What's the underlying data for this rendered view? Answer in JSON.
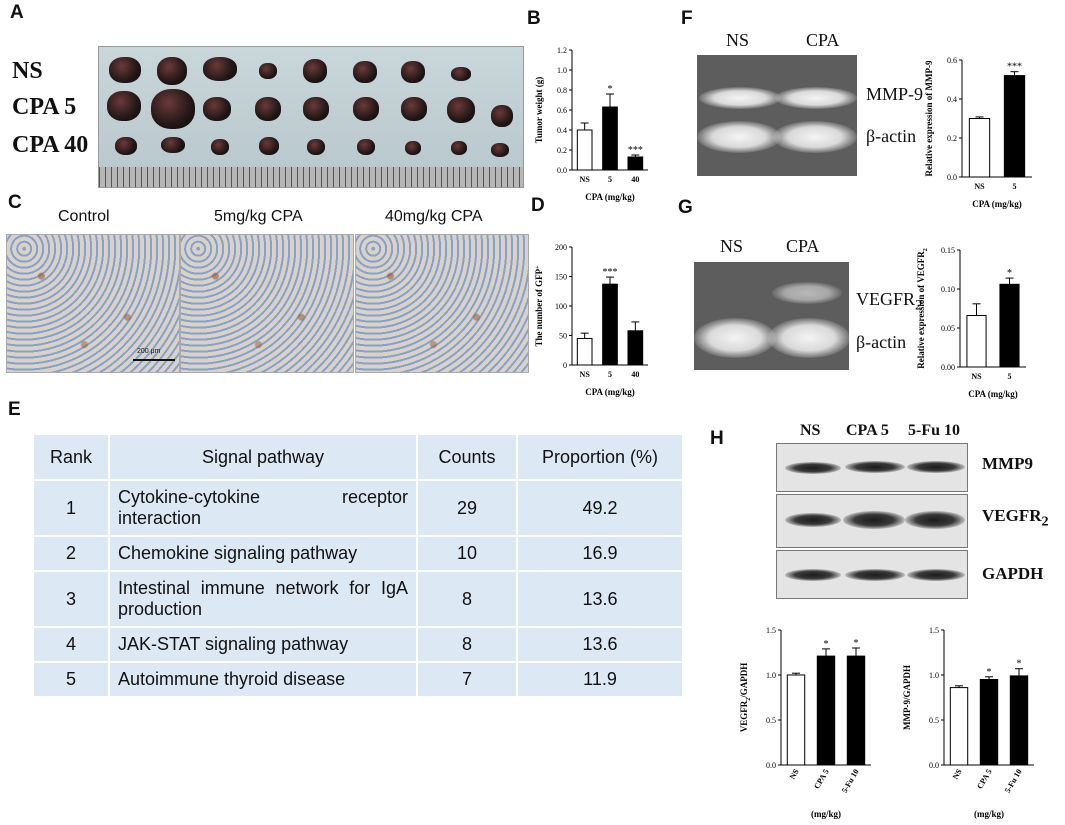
{
  "panel_labels": {
    "A": "A",
    "B": "B",
    "C": "C",
    "D": "D",
    "E": "E",
    "F": "F",
    "G": "G",
    "H": "H"
  },
  "panelA": {
    "rows": [
      "NS",
      "CPA 5",
      "CPA 40"
    ]
  },
  "panelC": {
    "titles": [
      "Control",
      "5mg/kg CPA",
      "40mg/kg CPA"
    ],
    "scale_text": "200 μm"
  },
  "panelF": {
    "lanes": [
      "NS",
      "CPA"
    ],
    "bands": [
      "MMP-9",
      "β-actin"
    ]
  },
  "panelG": {
    "lanes": [
      "NS",
      "CPA"
    ],
    "band_top": "VEGFR",
    "band_top_sub": "2",
    "band_bottom": "β-actin"
  },
  "panelH": {
    "lanes": [
      "NS",
      "CPA 5",
      "5-Fu 10"
    ],
    "blots": [
      "MMP9",
      "VEGFR",
      "GAPDH"
    ],
    "blot_sub": "2"
  },
  "table": {
    "headers": [
      "Rank",
      "Signal pathway",
      "Counts",
      "Proportion (%)"
    ],
    "rows": [
      {
        "rank": "1",
        "pathway": "Cytokine-cytokine receptor interaction",
        "counts": "29",
        "proportion": "49.2"
      },
      {
        "rank": "2",
        "pathway": "Chemokine signaling pathway",
        "counts": "10",
        "proportion": "16.9"
      },
      {
        "rank": "3",
        "pathway": "Intestinal immune network for IgA production",
        "counts": "8",
        "proportion": "13.6"
      },
      {
        "rank": "4",
        "pathway": "JAK-STAT signaling pathway",
        "counts": "8",
        "proportion": "13.6"
      },
      {
        "rank": "5",
        "pathway": "Autoimmune thyroid disease",
        "counts": "7",
        "proportion": "11.9"
      }
    ]
  },
  "chart_data": [
    {
      "id": "B",
      "type": "bar",
      "categories": [
        "NS",
        "5",
        "40"
      ],
      "values": [
        0.4,
        0.63,
        0.13
      ],
      "errors": [
        0.07,
        0.13,
        0.02
      ],
      "sig": [
        "",
        "*",
        "***"
      ],
      "fills": [
        "#ffffff",
        "#000000",
        "#000000"
      ],
      "ylabel": "Tumor weight (g)",
      "xlabel": "CPA (mg/kg)",
      "ylim": [
        0,
        1.2
      ],
      "yticks": [
        "0.0",
        "0.2",
        "0.4",
        "0.6",
        "0.8",
        "1.0",
        "1.2"
      ]
    },
    {
      "id": "D",
      "type": "bar",
      "categories": [
        "NS",
        "5",
        "40"
      ],
      "values": [
        45,
        137,
        58
      ],
      "errors": [
        9,
        12,
        15
      ],
      "sig": [
        "",
        "***",
        ""
      ],
      "fills": [
        "#ffffff",
        "#000000",
        "#000000"
      ],
      "ylabel": "The number of GFP",
      "ylabel_sup": "+",
      "xlabel": "CPA (mg/kg)",
      "ylim": [
        0,
        200
      ],
      "yticks": [
        "0",
        "50",
        "100",
        "150",
        "200"
      ]
    },
    {
      "id": "F",
      "type": "bar",
      "categories": [
        "NS",
        "5"
      ],
      "values": [
        0.3,
        0.52
      ],
      "errors": [
        0.008,
        0.02
      ],
      "sig": [
        "",
        "***"
      ],
      "fills": [
        "#ffffff",
        "#000000"
      ],
      "ylabel": "Relative expression of MMP-9",
      "xlabel": "CPA (mg/kg)",
      "ylim": [
        0,
        0.6
      ],
      "yticks": [
        "0.0",
        "0.2",
        "0.4",
        "0.6"
      ]
    },
    {
      "id": "G",
      "type": "bar",
      "categories": [
        "NS",
        "5"
      ],
      "values": [
        0.066,
        0.106
      ],
      "errors": [
        0.015,
        0.008
      ],
      "sig": [
        "",
        "*"
      ],
      "fills": [
        "#ffffff",
        "#000000"
      ],
      "ylabel": "Relative expression of VEGFR",
      "ylabel_sub": "2",
      "xlabel": "CPA (mg/kg)",
      "ylim": [
        0,
        0.15
      ],
      "yticks": [
        "0.00",
        "0.05",
        "0.10",
        "0.15"
      ]
    },
    {
      "id": "H1",
      "type": "bar",
      "categories": [
        "NS",
        "CPA 5",
        "5-Fu 10"
      ],
      "values": [
        1.0,
        1.21,
        1.21
      ],
      "errors": [
        0.02,
        0.08,
        0.09
      ],
      "sig": [
        "",
        "*",
        "*"
      ],
      "fills": [
        "#ffffff",
        "#000000",
        "#000000"
      ],
      "ylabel": "VEGFR",
      "ylabel_sub": "2",
      "ylabel_tail": "/GAPDH",
      "xlabel": "(mg/kg)",
      "ylim": [
        0,
        1.5
      ],
      "yticks": [
        "0.0",
        "0.5",
        "1.0",
        "1.5"
      ]
    },
    {
      "id": "H2",
      "type": "bar",
      "categories": [
        "NS",
        "CPA 5",
        "5-Fu 10"
      ],
      "values": [
        0.86,
        0.95,
        0.99
      ],
      "errors": [
        0.02,
        0.03,
        0.08
      ],
      "sig": [
        "",
        "*",
        "*"
      ],
      "fills": [
        "#ffffff",
        "#000000",
        "#000000"
      ],
      "ylabel": "MMP-9/GAPDH",
      "xlabel": "(mg/kg)",
      "ylim": [
        0,
        1.5
      ],
      "yticks": [
        "0.0",
        "0.5",
        "1.0",
        "1.5"
      ]
    }
  ]
}
